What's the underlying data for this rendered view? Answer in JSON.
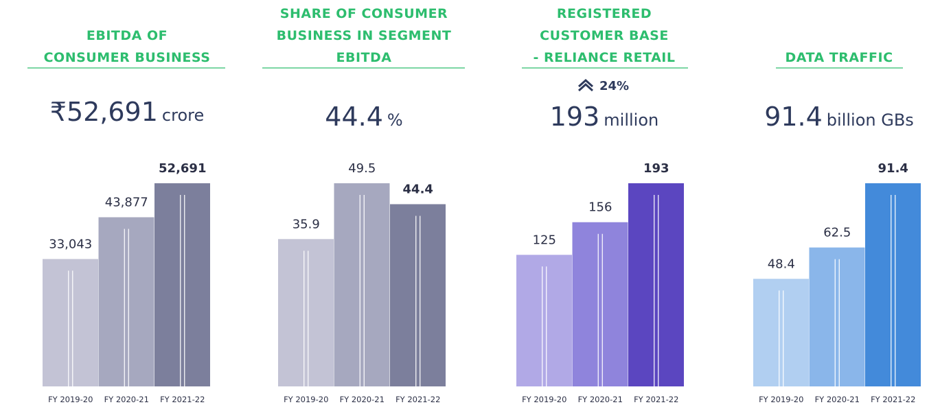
{
  "chart_data": [
    {
      "type": "bar",
      "title": [
        "EBITDA OF",
        "CONSUMER BUSINESS"
      ],
      "headline": {
        "value": "₹52,691",
        "unit": "crore"
      },
      "categories": [
        "FY 2019-20",
        "FY 2020-21",
        "FY 2021-22"
      ],
      "values": [
        33043,
        43877,
        52691
      ],
      "value_labels": [
        "33,043",
        "43,877",
        "52,691"
      ],
      "colors": [
        "#c3c3d5",
        "#a6a8bf",
        "#7c7f9c"
      ]
    },
    {
      "type": "bar",
      "title": [
        "SHARE OF CONSUMER",
        "BUSINESS IN SEGMENT",
        "EBITDA"
      ],
      "headline": {
        "value": "44.4",
        "unit": "%"
      },
      "categories": [
        "FY 2019-20",
        "FY 2020-21",
        "FY 2021-22"
      ],
      "values": [
        35.9,
        49.5,
        44.4
      ],
      "colors": [
        "#c3c3d5",
        "#a6a8bf",
        "#7c7f9c"
      ]
    },
    {
      "type": "bar",
      "title": [
        "REGISTERED",
        "CUSTOMER BASE",
        "- RELIANCE RETAIL"
      ],
      "annotation": "24%",
      "headline": {
        "value": "193",
        "unit": "million"
      },
      "categories": [
        "FY 2019-20",
        "FY 2020-21",
        "FY 2021-22"
      ],
      "values": [
        125,
        156,
        193
      ],
      "colors": [
        "#b1a9e6",
        "#8f84dc",
        "#5b46c0"
      ]
    },
    {
      "type": "bar",
      "title": [
        "DATA TRAFFIC"
      ],
      "headline": {
        "value": "91.4",
        "unit": "billion GBs"
      },
      "categories": [
        "FY 2019-20",
        "FY 2020-21",
        "FY 2021-22"
      ],
      "values": [
        48.4,
        62.5,
        91.4
      ],
      "colors": [
        "#b1cff1",
        "#8ab6ea",
        "#438ada"
      ]
    }
  ]
}
